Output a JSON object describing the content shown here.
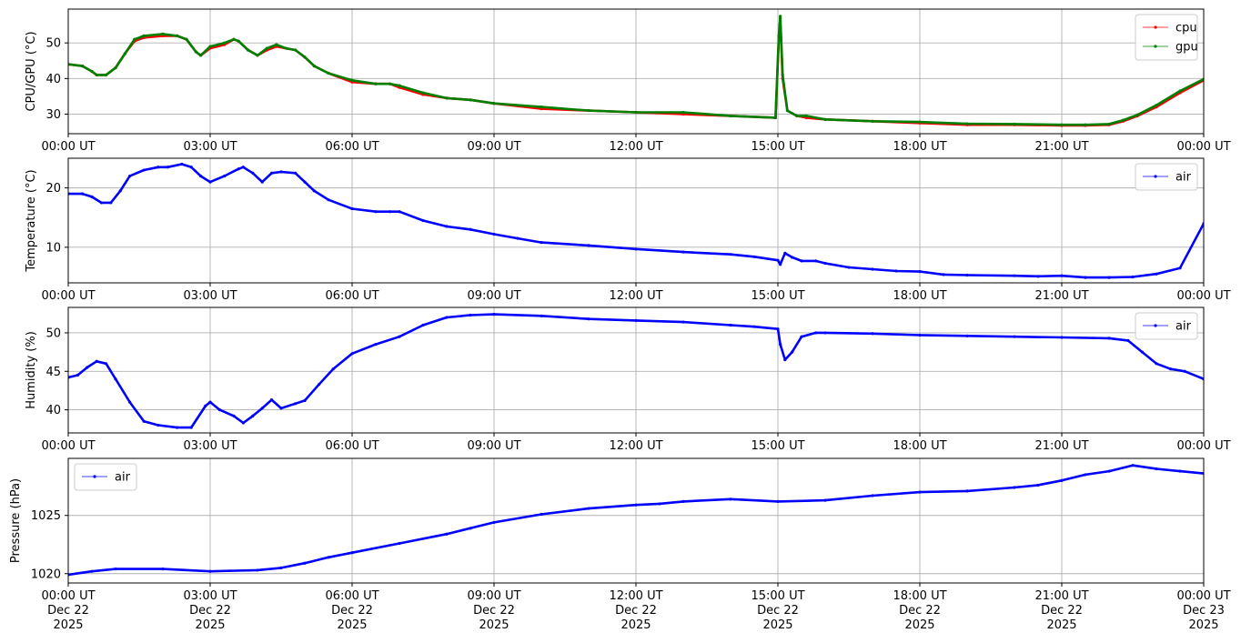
{
  "chart_data": [
    {
      "type": "line",
      "ylabel": "CPU/GPU (°C)",
      "xlabel": "",
      "xlim": [
        0,
        24
      ],
      "ylim": [
        24.5,
        59.5
      ],
      "yticks": [
        30,
        40,
        50
      ],
      "grid": true,
      "legend_position": "top-right",
      "x_tick_labels": [
        "00:00 UT",
        "03:00 UT",
        "06:00 UT",
        "09:00 UT",
        "12:00 UT",
        "15:00 UT",
        "18:00 UT",
        "21:00 UT",
        "00:00 UT"
      ],
      "series": [
        {
          "name": "cpu",
          "color": "#ff0000",
          "x": [
            0,
            0.3,
            0.5,
            0.6,
            0.8,
            1.0,
            1.2,
            1.4,
            1.6,
            2.0,
            2.3,
            2.5,
            2.7,
            2.8,
            3.0,
            3.3,
            3.5,
            3.6,
            3.8,
            4.0,
            4.2,
            4.4,
            4.6,
            4.8,
            5.0,
            5.2,
            5.5,
            6.0,
            6.5,
            6.8,
            7.0,
            7.5,
            8.0,
            8.5,
            9.0,
            10.0,
            11.0,
            12.0,
            13.0,
            14.0,
            14.95,
            15.02,
            15.05,
            15.1,
            15.2,
            15.4,
            15.6,
            16.0,
            17.0,
            18.0,
            19.0,
            20.0,
            21.0,
            21.5,
            22.0,
            22.3,
            22.6,
            23.0,
            23.5,
            24.0
          ],
          "values": [
            44,
            43.5,
            42,
            41,
            41,
            43,
            47,
            50.5,
            51.5,
            52,
            52,
            51,
            47.5,
            46.5,
            48.5,
            49.5,
            51,
            50.5,
            48,
            46.5,
            48,
            49,
            48.5,
            48,
            46,
            43.5,
            41.5,
            39,
            38.5,
            38.5,
            37.5,
            35.5,
            34.5,
            34,
            33,
            31.5,
            31,
            30.5,
            30,
            29.5,
            29,
            51,
            57,
            40,
            31,
            29.5,
            29,
            28.5,
            28,
            27.5,
            27,
            27,
            26.8,
            26.8,
            27,
            28,
            29.5,
            32,
            36,
            39.5
          ]
        },
        {
          "name": "gpu",
          "color": "#008000",
          "x": [
            0,
            0.3,
            0.5,
            0.6,
            0.8,
            1.0,
            1.2,
            1.4,
            1.6,
            2.0,
            2.3,
            2.5,
            2.7,
            2.8,
            3.0,
            3.3,
            3.5,
            3.6,
            3.8,
            4.0,
            4.2,
            4.4,
            4.6,
            4.8,
            5.0,
            5.2,
            5.5,
            6.0,
            6.5,
            6.8,
            7.0,
            7.5,
            8.0,
            8.5,
            9.0,
            10.0,
            11.0,
            12.0,
            13.0,
            14.0,
            14.95,
            15.02,
            15.05,
            15.1,
            15.2,
            15.4,
            15.6,
            16.0,
            17.0,
            18.0,
            19.0,
            20.0,
            21.0,
            21.5,
            22.0,
            22.3,
            22.6,
            23.0,
            23.5,
            24.0
          ],
          "values": [
            44,
            43.5,
            42,
            41,
            41,
            43,
            47,
            51,
            52,
            52.5,
            52,
            51,
            47.5,
            46.5,
            49,
            50,
            51,
            50.5,
            48,
            46.5,
            48.5,
            49.5,
            48.5,
            48,
            46,
            43.5,
            41.5,
            39.5,
            38.5,
            38.5,
            38,
            36,
            34.5,
            34,
            33,
            32,
            31,
            30.5,
            30.5,
            29.5,
            29,
            52,
            57.5,
            41,
            31,
            29.5,
            29.5,
            28.5,
            28,
            27.8,
            27.3,
            27.2,
            27,
            27,
            27.2,
            28.3,
            29.8,
            32.5,
            36.5,
            39.8
          ]
        }
      ]
    },
    {
      "type": "line",
      "ylabel": "Temperature (°C)",
      "xlabel": "",
      "xlim": [
        0,
        24
      ],
      "ylim": [
        4,
        25
      ],
      "yticks": [
        10,
        20
      ],
      "grid": true,
      "legend_position": "top-right",
      "x_tick_labels": [
        "00:00 UT",
        "03:00 UT",
        "06:00 UT",
        "09:00 UT",
        "12:00 UT",
        "15:00 UT",
        "18:00 UT",
        "21:00 UT",
        "00:00 UT"
      ],
      "series": [
        {
          "name": "air",
          "color": "#0000ff",
          "x": [
            0,
            0.3,
            0.5,
            0.7,
            0.9,
            1.1,
            1.3,
            1.6,
            1.9,
            2.1,
            2.4,
            2.6,
            2.8,
            3.0,
            3.3,
            3.6,
            3.7,
            3.9,
            4.1,
            4.3,
            4.5,
            4.8,
            5.0,
            5.2,
            5.5,
            6.0,
            6.5,
            6.8,
            7.0,
            7.5,
            8.0,
            8.5,
            9.0,
            9.5,
            10.0,
            11.0,
            12.0,
            13.0,
            14.0,
            14.5,
            15.0,
            15.05,
            15.15,
            15.3,
            15.5,
            15.8,
            16.0,
            16.5,
            17.0,
            17.5,
            18.0,
            18.5,
            19.0,
            20.0,
            20.5,
            21.0,
            21.5,
            22.0,
            22.5,
            23.0,
            23.5,
            24.0
          ],
          "values": [
            19,
            19,
            18.5,
            17.5,
            17.5,
            19.5,
            22,
            23,
            23.5,
            23.5,
            24,
            23.5,
            22,
            21,
            22,
            23.2,
            23.5,
            22.5,
            21,
            22.5,
            22.7,
            22.5,
            21,
            19.5,
            18,
            16.5,
            16,
            16,
            16,
            14.5,
            13.5,
            13,
            12.2,
            11.5,
            10.8,
            10.3,
            9.7,
            9.2,
            8.8,
            8.4,
            7.8,
            7.1,
            9.0,
            8.3,
            7.7,
            7.7,
            7.3,
            6.6,
            6.3,
            6.0,
            5.9,
            5.4,
            5.3,
            5.2,
            5.1,
            5.2,
            4.9,
            4.9,
            5.0,
            5.5,
            6.5,
            14
          ]
        }
      ]
    },
    {
      "type": "line",
      "ylabel": "Humidity (%)",
      "xlabel": "",
      "xlim": [
        0,
        24
      ],
      "ylim": [
        37,
        53.3
      ],
      "yticks": [
        40,
        45,
        50
      ],
      "grid": true,
      "legend_position": "top-right",
      "x_tick_labels": [
        "00:00 UT",
        "03:00 UT",
        "06:00 UT",
        "09:00 UT",
        "12:00 UT",
        "15:00 UT",
        "18:00 UT",
        "21:00 UT",
        "00:00 UT"
      ],
      "series": [
        {
          "name": "air",
          "color": "#0000ff",
          "x": [
            0,
            0.2,
            0.4,
            0.6,
            0.8,
            1.0,
            1.3,
            1.6,
            1.9,
            2.3,
            2.6,
            2.9,
            3.0,
            3.2,
            3.5,
            3.7,
            3.9,
            4.1,
            4.3,
            4.5,
            4.8,
            5.0,
            5.3,
            5.6,
            6.0,
            6.5,
            7.0,
            7.5,
            8.0,
            8.5,
            9.0,
            10.0,
            11.0,
            12.0,
            13.0,
            14.0,
            14.5,
            15.0,
            15.05,
            15.15,
            15.3,
            15.5,
            15.8,
            16.0,
            17.0,
            18.0,
            19.0,
            20.0,
            21.0,
            22.0,
            22.4,
            22.7,
            23.0,
            23.3,
            23.6,
            24.0
          ],
          "values": [
            44.2,
            44.5,
            45.5,
            46.3,
            46,
            44,
            41,
            38.5,
            38,
            37.7,
            37.7,
            40.5,
            41,
            40,
            39.2,
            38.3,
            39.2,
            40.2,
            41.3,
            40.2,
            40.8,
            41.2,
            43.3,
            45.3,
            47.3,
            48.5,
            49.5,
            51,
            52,
            52.3,
            52.4,
            52.2,
            51.8,
            51.6,
            51.4,
            51.0,
            50.8,
            50.5,
            48.5,
            46.5,
            47.5,
            49.5,
            50,
            50,
            49.9,
            49.7,
            49.6,
            49.5,
            49.4,
            49.3,
            49.0,
            47.5,
            46,
            45.3,
            45,
            44
          ]
        }
      ]
    },
    {
      "type": "line",
      "ylabel": "Pressure (hPa)",
      "xlabel": "",
      "xlim": [
        0,
        24
      ],
      "ylim": [
        1019.2,
        1029.9
      ],
      "yticks": [
        1020,
        1025
      ],
      "grid": true,
      "legend_position": "top-left",
      "x_tick_labels": [
        "00:00 UT\nDec 22\n2025",
        "03:00 UT\nDec 22\n2025",
        "06:00 UT\nDec 22\n2025",
        "09:00 UT\nDec 22\n2025",
        "12:00 UT\nDec 22\n2025",
        "15:00 UT\nDec 22\n2025",
        "18:00 UT\nDec 22\n2025",
        "21:00 UT\nDec 22\n2025",
        "00:00 UT\nDec 23\n2025"
      ],
      "series": [
        {
          "name": "air",
          "color": "#0000ff",
          "x": [
            0,
            0.5,
            1.0,
            2.0,
            3.0,
            4.0,
            4.5,
            5.0,
            5.5,
            6.0,
            7.0,
            8.0,
            8.5,
            9.0,
            10.0,
            11.0,
            12.0,
            12.5,
            13.0,
            14.0,
            15.0,
            16.0,
            17.0,
            18.0,
            19.0,
            20.0,
            20.5,
            21.0,
            21.5,
            22.0,
            22.5,
            23.0,
            23.5,
            24.0
          ],
          "values": [
            1019.9,
            1020.2,
            1020.4,
            1020.4,
            1020.2,
            1020.3,
            1020.5,
            1020.9,
            1021.4,
            1021.8,
            1022.6,
            1023.4,
            1023.9,
            1024.4,
            1025.1,
            1025.6,
            1025.9,
            1026.0,
            1026.2,
            1026.4,
            1026.2,
            1026.3,
            1026.7,
            1027.0,
            1027.1,
            1027.4,
            1027.6,
            1028.0,
            1028.5,
            1028.8,
            1029.3,
            1029.0,
            1028.8,
            1028.6
          ]
        }
      ]
    }
  ]
}
